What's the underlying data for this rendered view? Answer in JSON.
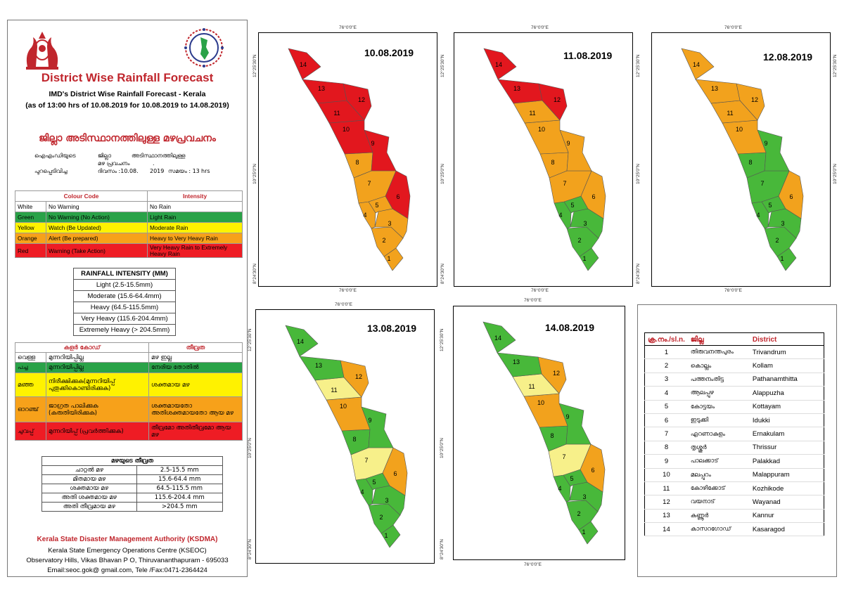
{
  "header": {
    "title": "District Wise Rainfall Forecast",
    "subtitle": "IMD's District Wise Rainfall Forecast - Kerala",
    "as_of": "(as of 13:00 hrs of 10.08.2019  for 10.08.2019 to 14.08.2019)"
  },
  "malayalam_header": {
    "title": "ജില്ലാ അടിസ്ഥാനത്തിലുള്ള മഴപ്രവചനം",
    "line1_a": "ഐഎംഡിയുടെ",
    "line1_b": "ജില്ലാ",
    "line1_c": "അടിസ്ഥാനത്തിലുള്ള",
    "line2_a": "മഴ പ്രവചനം",
    "line2_b": ".",
    "line3_a": "പുറപ്പെടിവിച്ച",
    "line3_b": "ദിവസം :10.08.",
    "line3_c": "2019",
    "line3_d": "സമയം : 13",
    "line3_e": "hrs"
  },
  "colour_code": {
    "header_code": "Colour Code",
    "header_intensity": "Intensity",
    "rows": [
      {
        "colour": "White",
        "code": "No Warning",
        "intensity": "No Rain"
      },
      {
        "colour": "Green",
        "code": "No Warning (No Action)",
        "intensity": "Light Rain"
      },
      {
        "colour": "Yellow",
        "code": "Watch (Be Updated)",
        "intensity": "Moderate Rain"
      },
      {
        "colour": "Orange",
        "code": "Alert (Be prepared)",
        "intensity": "Heavy to Very Heavy Rain"
      },
      {
        "colour": "Red",
        "code": "Warning (Take Action)",
        "intensity": "Very Heavy Rain to Extremely Heavy Rain"
      }
    ]
  },
  "rainfall_intensity": {
    "header": "RAINFALL INTENSITY (MM)",
    "rows": [
      "Light (2.5-15.5mm)",
      "Moderate (15.6-64.4mm)",
      "Heavy (64.5-115.5mm)",
      "Very Heavy (115.6-204.4mm)",
      "Extremely Heavy (> 204.5mm)"
    ]
  },
  "ml_colour_code": {
    "header_code": "കളർ കോഡ്",
    "header_intensity": "തീവ്രത",
    "rows": [
      {
        "colour": "വെള്ള",
        "code": "മുന്നറിയിപ്പില്ല",
        "intensity": "മഴ ഇല്ല"
      },
      {
        "colour": "പച്ച",
        "code": "മുന്നറിയിപ്പില്ല",
        "intensity": "നേരിയ തോതിൽ"
      },
      {
        "colour": "മഞ്ഞ",
        "code": "നിരീക്ഷിക്കുക(മുന്നറിയിപ്പ് പുതുക്കികൊണ്ടിരിക്കുക)",
        "intensity": "ശക്തമായ മഴ"
      },
      {
        "colour": "ഓറഞ്ച്",
        "code": "ജാഗ്രത പാലിക്കുക (കരുതിയിരിക്കുക)",
        "intensity": "ശക്തമായതോ അതിശക്തമായതോ ആയ മഴ"
      },
      {
        "colour": "ചുവപ്പ്",
        "code": "മുന്നറിയിപ്പ് (പ്രവർത്തിക്കുക)",
        "intensity": "തീവ്രമോ അതിതീവ്രമോ ആയ മഴ"
      }
    ]
  },
  "ml_intensity": {
    "header": "മഴയുടെ തീവ്രത",
    "rows": [
      {
        "label": "ചാറ്റൽ മഴ",
        "value": "2.5-15.5 mm"
      },
      {
        "label": "മിതമായ മഴ",
        "value": "15.6-64.4 mm"
      },
      {
        "label": "ശക്തമായ മഴ",
        "value": "64.5-115.5 mm"
      },
      {
        "label": "അതി ശക്തമായ മഴ",
        "value": "115.6-204.4 mm"
      },
      {
        "label": "അതി തീവ്രമായ മഴ",
        "value": ">204.5 mm"
      }
    ]
  },
  "footer": {
    "org": "Kerala State Disaster Management Authority (KSDMA)",
    "centre": "Kerala State Emergency Operations Centre (KSEOC)",
    "address": "Observatory Hills, Vikas Bhavan P O, Thiruvananthapuram - 695033",
    "contact": "Email:seoc.gok@ gmail.com, Tele /Fax:0471-2364424"
  },
  "coords": {
    "lon": "76°0'0\"E",
    "lat_n": "12°25'30\"N",
    "lat_m": "10°25'0\"N",
    "lat_s": "8°24'30\"N"
  },
  "colors": {
    "G": "#48b83a",
    "Y": "#f7f08a",
    "O": "#f2a21d",
    "R": "#e2171e"
  },
  "maps": [
    {
      "date": "10.08.2019",
      "fills": [
        "O",
        "O",
        "O",
        "O",
        "O",
        "R",
        "O",
        "O",
        "R",
        "R",
        "R",
        "R",
        "R",
        "R"
      ]
    },
    {
      "date": "11.08.2019",
      "fills": [
        "G",
        "G",
        "G",
        "G",
        "G",
        "O",
        "O",
        "O",
        "O",
        "O",
        "O",
        "R",
        "R",
        "R"
      ]
    },
    {
      "date": "12.08.2019",
      "fills": [
        "G",
        "G",
        "G",
        "G",
        "G",
        "O",
        "G",
        "G",
        "G",
        "O",
        "O",
        "O",
        "O",
        "O"
      ]
    },
    {
      "date": "13.08.2019",
      "fills": [
        "G",
        "G",
        "G",
        "G",
        "G",
        "O",
        "Y",
        "G",
        "G",
        "O",
        "Y",
        "O",
        "G",
        "G"
      ]
    },
    {
      "date": "14.08.2019",
      "fills": [
        "G",
        "G",
        "G",
        "G",
        "G",
        "O",
        "Y",
        "G",
        "G",
        "O",
        "Y",
        "O",
        "G",
        "G"
      ]
    }
  ],
  "district_table": {
    "headers": [
      "ക്ര.നം./sl.n.",
      "ജില്ല",
      "District"
    ],
    "rows": [
      {
        "n": "1",
        "ml": "തിരുവനന്തപുരം",
        "en": "Trivandrum"
      },
      {
        "n": "2",
        "ml": "കൊല്ലം",
        "en": "Kollam"
      },
      {
        "n": "3",
        "ml": "പത്തനംതിട്ട",
        "en": "Pathanamthitta"
      },
      {
        "n": "4",
        "ml": "ആലപ്പുഴ",
        "en": "Alappuzha"
      },
      {
        "n": "5",
        "ml": "കോട്ടയം",
        "en": "Kottayam"
      },
      {
        "n": "6",
        "ml": "ഇടുക്കി",
        "en": "Idukki"
      },
      {
        "n": "7",
        "ml": "എറണാകുളം",
        "en": "Ernakulam"
      },
      {
        "n": "8",
        "ml": "തൃശ്ശൂർ",
        "en": "Thrissur"
      },
      {
        "n": "9",
        "ml": "പാലക്കാട്",
        "en": "Palakkad"
      },
      {
        "n": "10",
        "ml": "മലപ്പുറം",
        "en": "Malappuram"
      },
      {
        "n": "11",
        "ml": "കോഴിക്കോട്",
        "en": "Kozhikode"
      },
      {
        "n": "12",
        "ml": "വയനാട്",
        "en": "Wayanad"
      },
      {
        "n": "13",
        "ml": "കണ്ണൂർ",
        "en": "Kannur"
      },
      {
        "n": "14",
        "ml": "കാസറഗോഡ്",
        "en": "Kasaragod"
      }
    ]
  }
}
